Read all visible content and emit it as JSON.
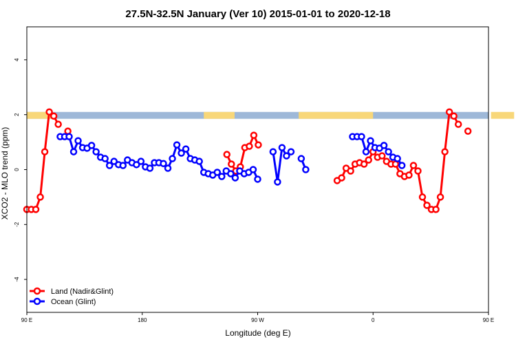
{
  "chart_data": {
    "type": "line",
    "title": "27.5N-32.5N January (Ver 10)   2015-01-01 to 2020-12-18",
    "xlabel": "Longitude (deg E)",
    "ylabel": "XCO2 - MLO trend (ppm)",
    "xlim": [
      90,
      450
    ],
    "ylim": [
      -5.2,
      5.2
    ],
    "x_ticks": [
      {
        "value": 90,
        "label": "90 E"
      },
      {
        "value": 180,
        "label": "180"
      },
      {
        "value": 270,
        "label": "90 W"
      },
      {
        "value": 360,
        "label": "0"
      },
      {
        "value": 450,
        "label": "90 E"
      },
      {
        "value": 540,
        "label": "180"
      }
    ],
    "y_ticks": [
      {
        "value": -4,
        "label": "-4"
      },
      {
        "value": -2,
        "label": "-2"
      },
      {
        "value": 0,
        "label": "0"
      },
      {
        "value": 2,
        "label": "2"
      },
      {
        "value": 4,
        "label": "4"
      }
    ],
    "grid": false,
    "legend_position": "bottom-left",
    "land_sea_strip": {
      "y_range": [
        1.85,
        2.1
      ],
      "ocean_color": "#9eb8d8",
      "land_color": "#f8d779",
      "land_segments": [
        [
          90,
          110
        ],
        [
          228,
          252
        ],
        [
          302,
          350
        ],
        [
          348,
          360
        ],
        [
          452,
          470
        ]
      ]
    },
    "series": [
      {
        "name": "Land (Nadir&Glint)",
        "color": "#ff0000",
        "segments": [
          [
            [
              90,
              -1.45
            ],
            [
              93.5,
              -1.45
            ],
            [
              97,
              -1.45
            ],
            [
              100.5,
              -1.0
            ],
            [
              104,
              0.65
            ],
            [
              107.5,
              2.1
            ],
            [
              111,
              1.95
            ],
            [
              114.5,
              1.65
            ]
          ],
          [
            [
              122,
              1.4
            ]
          ],
          [
            [
              246,
              0.55
            ],
            [
              249.5,
              0.2
            ],
            [
              253,
              -0.05
            ],
            [
              256.5,
              0.1
            ],
            [
              260,
              0.8
            ],
            [
              263.5,
              0.85
            ],
            [
              267,
              1.25
            ],
            [
              270.5,
              0.9
            ]
          ],
          [
            [
              332,
              -0.4
            ],
            [
              335.5,
              -0.3
            ],
            [
              339,
              0.05
            ],
            [
              342.5,
              -0.05
            ],
            [
              346,
              0.2
            ],
            [
              349.5,
              0.25
            ],
            [
              353,
              0.2
            ],
            [
              356.5,
              0.35
            ],
            [
              360,
              0.65
            ],
            [
              363.5,
              0.45
            ],
            [
              367,
              0.5
            ],
            [
              370.5,
              0.3
            ],
            [
              374,
              0.2
            ],
            [
              377.5,
              0.2
            ],
            [
              381,
              -0.15
            ],
            [
              384.5,
              -0.25
            ],
            [
              388,
              -0.2
            ],
            [
              391.5,
              0.15
            ],
            [
              395,
              -0.05
            ],
            [
              398.5,
              -1.0
            ],
            [
              402,
              -1.3
            ],
            [
              405.5,
              -1.45
            ],
            [
              409,
              -1.45
            ],
            [
              412.5,
              -1.0
            ],
            [
              416,
              0.65
            ],
            [
              419.5,
              2.1
            ],
            [
              423,
              1.95
            ],
            [
              426.5,
              1.65
            ]
          ],
          [
            [
              434,
              1.4
            ]
          ]
        ]
      },
      {
        "name": "Ocean (Glint)",
        "color": "#0000ff",
        "segments": [
          [
            [
              116,
              1.2
            ],
            [
              119.5,
              1.2
            ],
            [
              123,
              1.2
            ],
            [
              126.5,
              0.65
            ],
            [
              130,
              1.05
            ],
            [
              133.5,
              0.8
            ],
            [
              137,
              0.78
            ],
            [
              140.5,
              0.88
            ],
            [
              144,
              0.65
            ],
            [
              147.5,
              0.45
            ],
            [
              151,
              0.4
            ],
            [
              154.5,
              0.15
            ],
            [
              158,
              0.3
            ],
            [
              161.5,
              0.18
            ],
            [
              165,
              0.15
            ],
            [
              168.5,
              0.35
            ],
            [
              172,
              0.25
            ],
            [
              175.5,
              0.18
            ],
            [
              179,
              0.3
            ],
            [
              182.5,
              0.1
            ],
            [
              186,
              0.05
            ],
            [
              189.5,
              0.25
            ],
            [
              193,
              0.25
            ],
            [
              196.5,
              0.22
            ],
            [
              200,
              0.05
            ],
            [
              203.5,
              0.4
            ],
            [
              207,
              0.9
            ],
            [
              210.5,
              0.6
            ],
            [
              214,
              0.75
            ],
            [
              217.5,
              0.4
            ],
            [
              221,
              0.35
            ],
            [
              224.5,
              0.3
            ],
            [
              228,
              -0.1
            ],
            [
              231.5,
              -0.15
            ],
            [
              235,
              -0.2
            ],
            [
              238.5,
              -0.1
            ],
            [
              242,
              -0.25
            ],
            [
              245.5,
              -0.05
            ],
            [
              249,
              -0.15
            ],
            [
              252.5,
              -0.3
            ],
            [
              256,
              -0.05
            ],
            [
              259.5,
              -0.15
            ],
            [
              263,
              -0.1
            ],
            [
              266.5,
              0.0
            ],
            [
              270,
              -0.35
            ]
          ],
          [
            [
              282,
              0.65
            ],
            [
              285.5,
              -0.45
            ],
            [
              289,
              0.8
            ],
            [
              292.5,
              0.5
            ],
            [
              296,
              0.65
            ]
          ],
          [
            [
              304,
              0.4
            ],
            [
              307.5,
              0.0
            ]
          ],
          [
            [
              344,
              1.2
            ],
            [
              347.5,
              1.2
            ],
            [
              351,
              1.2
            ],
            [
              354.5,
              0.65
            ],
            [
              358,
              1.05
            ],
            [
              361.5,
              0.8
            ],
            [
              365,
              0.78
            ],
            [
              368.5,
              0.88
            ],
            [
              372,
              0.65
            ],
            [
              375.5,
              0.45
            ],
            [
              379,
              0.4
            ],
            [
              382.5,
              0.15
            ]
          ]
        ]
      }
    ]
  }
}
